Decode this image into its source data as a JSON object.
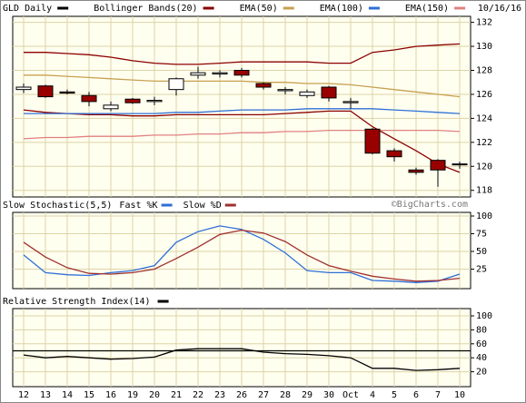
{
  "chart_data": [
    {
      "type": "candlestick",
      "date": "10/16/16",
      "annotation": "©BigCharts.com",
      "ylim": [
        117.6,
        132.5
      ],
      "yticks": [
        118,
        120,
        122,
        124,
        126,
        128,
        130,
        132
      ],
      "grid": true,
      "candles": {
        "name": "GLD Daily",
        "color": "#000000",
        "up_color": "#ffffff",
        "down_color": "#990000",
        "open": [
          126.4,
          126.7,
          126.2,
          125.9,
          124.8,
          125.6,
          125.4,
          126.4,
          127.6,
          127.7,
          128.0,
          126.9,
          126.3,
          125.9,
          126.6,
          125.3,
          123.1,
          121.3,
          119.7,
          120.5,
          120.2
        ],
        "high": [
          126.9,
          126.8,
          126.4,
          126.2,
          125.4,
          125.7,
          125.8,
          127.4,
          128.3,
          128.0,
          128.2,
          127.0,
          126.6,
          126.4,
          126.7,
          125.7,
          123.2,
          121.5,
          119.9,
          120.6,
          120.4
        ],
        "low": [
          126.1,
          125.7,
          126.0,
          125.0,
          124.6,
          125.2,
          125.1,
          125.9,
          127.3,
          127.4,
          127.4,
          126.4,
          126.0,
          125.7,
          125.4,
          124.8,
          121.0,
          120.4,
          119.3,
          118.3,
          119.8
        ],
        "close": [
          126.6,
          125.8,
          126.1,
          125.4,
          125.1,
          125.3,
          125.5,
          127.3,
          127.8,
          127.8,
          127.6,
          126.6,
          126.4,
          126.2,
          125.7,
          125.4,
          121.1,
          120.8,
          119.5,
          119.7,
          120.2
        ]
      },
      "series": [
        {
          "name": "Bollinger Bands(20)",
          "color": "#8b0000",
          "upper": [
            129.5,
            129.5,
            129.4,
            129.3,
            129.1,
            128.8,
            128.6,
            128.5,
            128.5,
            128.6,
            128.7,
            128.7,
            128.7,
            128.7,
            128.6,
            128.6,
            129.5,
            129.7,
            130.0,
            130.1,
            130.2
          ],
          "lower": [
            124.7,
            124.5,
            124.4,
            124.3,
            124.3,
            124.2,
            124.2,
            124.3,
            124.3,
            124.3,
            124.3,
            124.3,
            124.4,
            124.5,
            124.6,
            124.6,
            123.3,
            122.3,
            121.3,
            120.2,
            119.5
          ]
        },
        {
          "name": "EMA(50)",
          "color": "#c8a050",
          "values": [
            127.6,
            127.6,
            127.5,
            127.4,
            127.3,
            127.2,
            127.1,
            127.1,
            127.1,
            127.1,
            127.1,
            127.0,
            127.0,
            126.9,
            126.9,
            126.8,
            126.6,
            126.4,
            126.2,
            126.0,
            125.8
          ]
        },
        {
          "name": "EMA(100)",
          "color": "#2f6fd6",
          "values": [
            124.4,
            124.4,
            124.4,
            124.4,
            124.4,
            124.4,
            124.4,
            124.5,
            124.5,
            124.6,
            124.7,
            124.7,
            124.7,
            124.8,
            124.8,
            124.8,
            124.8,
            124.7,
            124.6,
            124.5,
            124.4
          ]
        },
        {
          "name": "EMA(150)",
          "color": "#e08080",
          "values": [
            122.3,
            122.4,
            122.4,
            122.5,
            122.5,
            122.5,
            122.6,
            122.6,
            122.7,
            122.7,
            122.8,
            122.8,
            122.9,
            122.9,
            123.0,
            123.0,
            123.0,
            123.0,
            123.0,
            123.0,
            122.9
          ]
        }
      ]
    },
    {
      "type": "line",
      "title": "Slow Stochastic(5,5)",
      "ylim": [
        0,
        100
      ],
      "yticks": [
        25,
        50,
        75,
        100
      ],
      "grid": true,
      "series": [
        {
          "name": "Fast %K",
          "color": "#2f6fd6",
          "values": [
            45,
            20,
            17,
            16,
            20,
            23,
            30,
            63,
            78,
            86,
            81,
            67,
            48,
            23,
            20,
            20,
            9,
            8,
            6,
            8,
            18
          ]
        },
        {
          "name": "Slow %D",
          "color": "#a03030",
          "values": [
            63,
            42,
            27,
            19,
            18,
            20,
            25,
            40,
            56,
            74,
            80,
            76,
            64,
            45,
            30,
            22,
            15,
            11,
            8,
            9,
            12
          ]
        }
      ]
    },
    {
      "type": "line",
      "title": "Relative Strength Index(14)",
      "ylim": [
        0,
        100
      ],
      "yticks": [
        20,
        40,
        60,
        80,
        100
      ],
      "grid": true,
      "reference_line": 50,
      "categories": [
        "12",
        "13",
        "14",
        "15",
        "16",
        "19",
        "20",
        "21",
        "22",
        "23",
        "26",
        "27",
        "28",
        "29",
        "30",
        "Oct",
        "4",
        "5",
        "6",
        "7",
        "10"
      ],
      "series": [
        {
          "color": "#000000",
          "values": [
            44,
            40,
            42,
            40,
            38,
            39,
            41,
            51,
            53,
            53,
            53,
            48,
            46,
            45,
            43,
            40,
            25,
            25,
            22,
            23,
            25
          ]
        }
      ]
    }
  ]
}
